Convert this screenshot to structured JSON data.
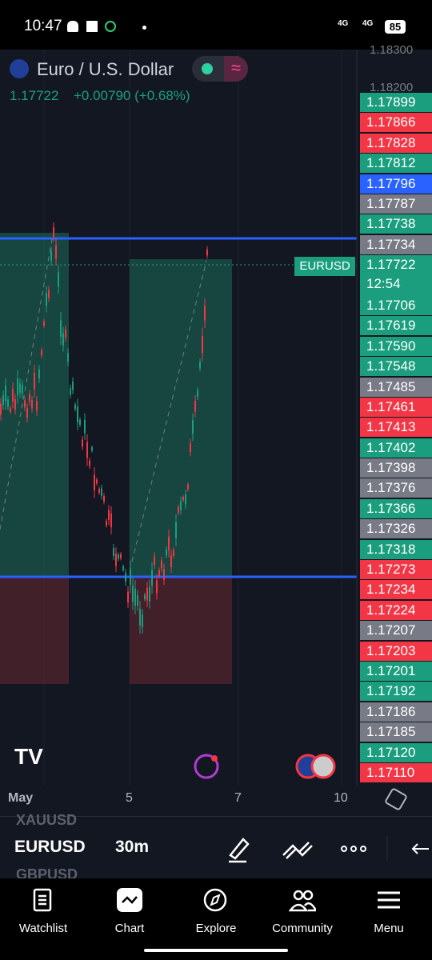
{
  "status_bar": {
    "time": "10:47",
    "signal_1": "4G",
    "signal_2": "4G",
    "battery": "85"
  },
  "header": {
    "title": "Euro / U.S. Dollar",
    "price": "1.17722",
    "change": "+0.00790 (+0.68%)"
  },
  "axis_top_labels": [
    "1.18300",
    "1.18200"
  ],
  "price_labels": [
    {
      "text": "1.17899",
      "color": "#1b9e7e"
    },
    {
      "text": "1.17866",
      "color": "#f23645"
    },
    {
      "text": "1.17828",
      "color": "#f23645"
    },
    {
      "text": "1.17812",
      "color": "#1b9e7e"
    },
    {
      "text": "1.17796",
      "color": "#2962ff"
    },
    {
      "text": "1.17787",
      "color": "#787b86"
    },
    {
      "text": "1.17738",
      "color": "#1b9e7e"
    },
    {
      "text": "1.17734",
      "color": "#787b86"
    },
    {
      "text": "1.17722",
      "color": "#1b9e7e",
      "countdown": "12:54"
    },
    {
      "text": "1.17706",
      "color": "#1b9e7e"
    },
    {
      "text": "1.17619",
      "color": "#1b9e7e"
    },
    {
      "text": "1.17590",
      "color": "#1b9e7e"
    },
    {
      "text": "1.17548",
      "color": "#1b9e7e"
    },
    {
      "text": "1.17485",
      "color": "#787b86"
    },
    {
      "text": "1.17461",
      "color": "#f23645"
    },
    {
      "text": "1.17413",
      "color": "#f23645"
    },
    {
      "text": "1.17402",
      "color": "#1b9e7e"
    },
    {
      "text": "1.17398",
      "color": "#787b86"
    },
    {
      "text": "1.17376",
      "color": "#787b86"
    },
    {
      "text": "1.17366",
      "color": "#1b9e7e"
    },
    {
      "text": "1.17326",
      "color": "#787b86"
    },
    {
      "text": "1.17318",
      "color": "#1b9e7e"
    },
    {
      "text": "1.17273",
      "color": "#f23645"
    },
    {
      "text": "1.17234",
      "color": "#f23645"
    },
    {
      "text": "1.17224",
      "color": "#f23645"
    },
    {
      "text": "1.17207",
      "color": "#787b86"
    },
    {
      "text": "1.17203",
      "color": "#f23645"
    },
    {
      "text": "1.17201",
      "color": "#1b9e7e"
    },
    {
      "text": "1.17192",
      "color": "#1b9e7e"
    },
    {
      "text": "1.17186",
      "color": "#787b86"
    },
    {
      "text": "1.17185",
      "color": "#787b86"
    },
    {
      "text": "1.17120",
      "color": "#1b9e7e"
    },
    {
      "text": "1.17110",
      "color": "#f23645"
    }
  ],
  "symbol_tag": "EURUSD",
  "x_axis": [
    "May",
    "5",
    "7",
    "10"
  ],
  "toolbar": {
    "prev_symbol": "XAUUSD",
    "symbol": "EURUSD",
    "interval": "30m",
    "next_symbol": "GBPUSD"
  },
  "nav": [
    "Watchlist",
    "Chart",
    "Explore",
    "Community",
    "Menu"
  ]
}
